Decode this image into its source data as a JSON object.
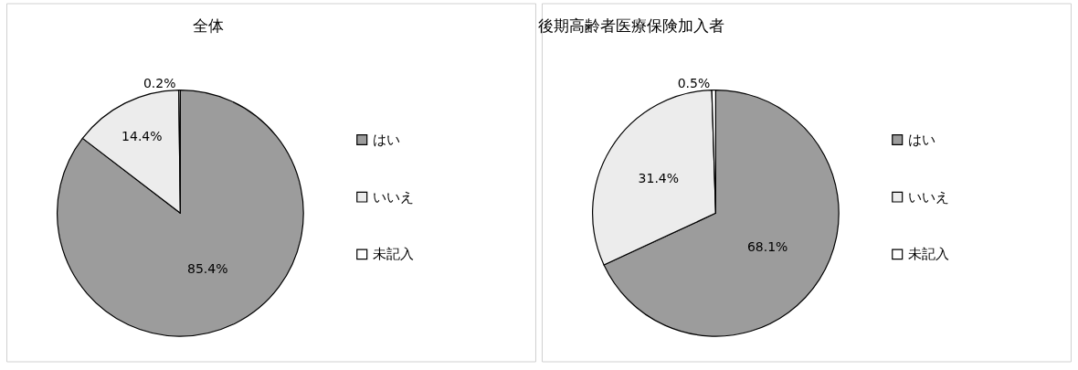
{
  "chart_data": [
    {
      "type": "pie",
      "title": "全体",
      "categories": [
        "はい",
        "いいえ",
        "未記入"
      ],
      "values": [
        85.4,
        14.4,
        0.2
      ],
      "colors": [
        "#9c9c9c",
        "#ececec",
        "#ffffff"
      ],
      "value_labels": [
        "85.4%",
        "14.4%",
        "0.2%"
      ],
      "legend": "right"
    },
    {
      "type": "pie",
      "title": "後期高齢者医療保険加入者",
      "categories": [
        "はい",
        "いいえ",
        "未記入"
      ],
      "values": [
        68.1,
        31.4,
        0.5
      ],
      "colors": [
        "#9c9c9c",
        "#ececec",
        "#ffffff"
      ],
      "value_labels": [
        "68.1%",
        "31.4%",
        "0.5%"
      ],
      "legend": "right"
    }
  ]
}
